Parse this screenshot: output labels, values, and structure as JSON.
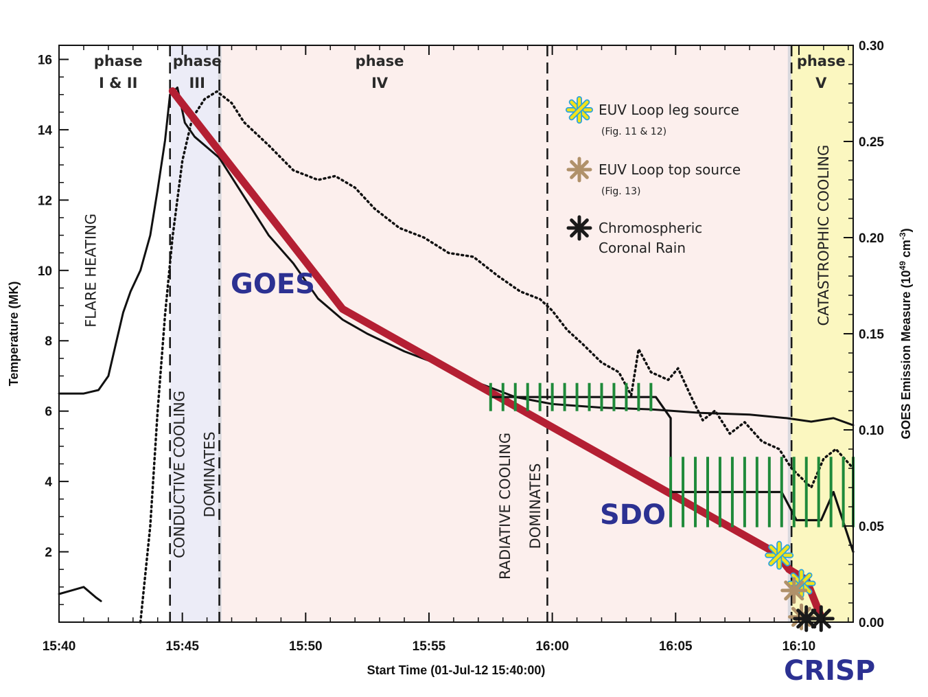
{
  "chart_data": {
    "type": "line",
    "title": "",
    "xlabel": "Start Time (01-Jul-12 15:40:00)",
    "ylabel_left": "Temperature (MK)",
    "ylabel_right_parts": [
      "GOES Emission Measure (10",
      "49",
      " cm",
      "-3",
      ")"
    ],
    "x_unit": "minutes after 15:40",
    "xlim": [
      0,
      32.2
    ],
    "ylim_left": [
      0,
      16.4
    ],
    "ylim_right": [
      0,
      0.3
    ],
    "x_ticks": [
      {
        "value": 0,
        "label": "15:40"
      },
      {
        "value": 5,
        "label": "15:45"
      },
      {
        "value": 10,
        "label": "15:50"
      },
      {
        "value": 15,
        "label": "15:55"
      },
      {
        "value": 20,
        "label": "16:00"
      },
      {
        "value": 25,
        "label": "16:05"
      },
      {
        "value": 30,
        "label": "16:10"
      }
    ],
    "y_left_ticks": [
      {
        "value": 2,
        "label": "2"
      },
      {
        "value": 4,
        "label": "4"
      },
      {
        "value": 6,
        "label": "6"
      },
      {
        "value": 8,
        "label": "8"
      },
      {
        "value": 10,
        "label": "10"
      },
      {
        "value": 12,
        "label": "12"
      },
      {
        "value": 14,
        "label": "14"
      },
      {
        "value": 16,
        "label": "16"
      }
    ],
    "y_right_ticks": [
      {
        "value": 0.0,
        "label": "0.00"
      },
      {
        "value": 0.05,
        "label": "0.05"
      },
      {
        "value": 0.1,
        "label": "0.10"
      },
      {
        "value": 0.15,
        "label": "0.15"
      },
      {
        "value": 0.2,
        "label": "0.20"
      },
      {
        "value": 0.25,
        "label": "0.25"
      },
      {
        "value": 0.3,
        "label": "0.30"
      }
    ],
    "phase_regions": [
      {
        "name": "phase III",
        "x0": 4.5,
        "x1": 6.5,
        "color": "#ececf7"
      },
      {
        "name": "phase IV",
        "x0": 6.5,
        "x1": 29.6,
        "color": "#fcefed"
      },
      {
        "name": "phase V",
        "x0": 29.6,
        "x1": 32.2,
        "color": "#fbf7c0"
      }
    ],
    "phase_lines": [
      4.5,
      6.5,
      19.8,
      29.7
    ],
    "phase_labels": [
      {
        "line1": "phase",
        "line2": "I & II",
        "x": 2.4
      },
      {
        "line1": "phase",
        "line2": "III",
        "x": 5.6
      },
      {
        "line1": "phase",
        "line2": "IV",
        "x": 13.0
      },
      {
        "line1": "phase",
        "line2": "V",
        "x": 30.9
      }
    ],
    "vertical_labels": [
      {
        "lines": [
          "FLARE  HEATING"
        ],
        "x": 1.3,
        "y": 10.0
      },
      {
        "lines": [
          "CONDUCTIVE  COOLING",
          "DOMINATES"
        ],
        "x": 5.5,
        "y": 4.2
      },
      {
        "lines": [
          "RADIATIVE  COOLING",
          "DOMINATES"
        ],
        "x": 18.7,
        "y": 3.3
      },
      {
        "lines": [
          "CATASTROPHIC  COOLING"
        ],
        "x": 31.0,
        "y": 11.0
      }
    ],
    "series": [
      {
        "name": "GOES temperature",
        "style": "solid-black",
        "x": [
          0,
          1.0,
          1.6,
          2.0,
          2.3,
          2.6,
          2.9,
          3.3,
          3.7,
          4.0,
          4.3,
          4.5,
          4.8,
          5.1,
          5.5,
          6.0,
          6.5,
          7.5,
          8.5,
          9.5,
          10.5,
          11.5,
          12.5,
          14,
          15.5,
          17,
          18.5,
          20,
          22,
          24,
          26,
          28,
          29.5,
          30.5,
          31.4,
          32.2
        ],
        "y": [
          6.5,
          6.5,
          6.6,
          7.0,
          7.9,
          8.8,
          9.4,
          10.0,
          11.0,
          12.3,
          13.7,
          15.0,
          15.2,
          14.2,
          13.8,
          13.5,
          13.2,
          12.1,
          11.0,
          10.2,
          9.2,
          8.6,
          8.2,
          7.7,
          7.3,
          6.8,
          6.4,
          6.2,
          6.1,
          6.05,
          5.95,
          5.9,
          5.8,
          5.7,
          5.8,
          5.6
        ]
      },
      {
        "name": "GOES emission measure",
        "style": "dotted-black",
        "axis": "right",
        "x": [
          3.3,
          3.7,
          4.0,
          4.3,
          4.6,
          5.0,
          5.4,
          5.9,
          6.4,
          7.0,
          7.5,
          8.5,
          9.5,
          10.5,
          11.2,
          12.0,
          12.8,
          13.8,
          14.8,
          15.8,
          16.8,
          17.8,
          18.7,
          19.5,
          20.0,
          20.6,
          21.2,
          22.0,
          22.7,
          23.2,
          23.5,
          24.0,
          24.7,
          25.1,
          25.6,
          26.1,
          26.6,
          27.2,
          27.8,
          28.5,
          29.2,
          29.7,
          30.1,
          30.5,
          31.0,
          31.5,
          32.2
        ],
        "y": [
          0.0,
          0.05,
          0.11,
          0.16,
          0.2,
          0.24,
          0.262,
          0.272,
          0.276,
          0.27,
          0.26,
          0.248,
          0.235,
          0.23,
          0.232,
          0.226,
          0.215,
          0.205,
          0.2,
          0.192,
          0.19,
          0.18,
          0.172,
          0.168,
          0.162,
          0.152,
          0.145,
          0.135,
          0.13,
          0.118,
          0.142,
          0.13,
          0.126,
          0.132,
          0.118,
          0.105,
          0.11,
          0.098,
          0.104,
          0.094,
          0.09,
          0.08,
          0.075,
          0.07,
          0.085,
          0.09,
          0.08
        ]
      },
      {
        "name": "GOES red model",
        "style": "thick-red",
        "x": [
          4.6,
          11.5,
          29.1,
          29.6,
          30.3,
          30.9
        ],
        "y": [
          15.1,
          8.9,
          1.95,
          1.5,
          1.2,
          0.15
        ]
      },
      {
        "name": "SDO",
        "style": "solid-black-step",
        "x": [
          17.5,
          24.2,
          24.8,
          24.8,
          29.3,
          29.9,
          30.9,
          31.4,
          32.2
        ],
        "y": [
          6.4,
          6.4,
          5.8,
          3.7,
          3.7,
          2.9,
          2.9,
          3.7,
          2.0
        ]
      },
      {
        "name": "early fragment",
        "style": "solid-black",
        "x": [
          0,
          0.5,
          1.0,
          1.5,
          1.7
        ],
        "y": [
          0.8,
          0.9,
          1.0,
          0.7,
          0.6
        ]
      }
    ],
    "error_bars": [
      {
        "group": "SDO upper",
        "center_y": 6.4,
        "half": 0.4,
        "x": [
          17.5,
          18.0,
          18.5,
          19.0,
          19.5,
          20.0,
          20.5,
          21.0,
          21.5,
          22.0,
          22.5,
          23.0,
          23.5,
          24.0
        ]
      },
      {
        "group": "SDO lower",
        "center_y": 3.7,
        "half": 1.0,
        "x": [
          24.8,
          25.3,
          25.8,
          26.3,
          26.8,
          27.3,
          27.8,
          28.3,
          28.8,
          29.3,
          29.8,
          30.3,
          30.8,
          31.3,
          31.8,
          32.2
        ]
      }
    ],
    "markers": [
      {
        "type": "EUV Loop leg source",
        "x": 29.2,
        "y": 1.9,
        "color": "#f2e21a",
        "outline": "#2aa3de"
      },
      {
        "type": "EUV Loop leg source",
        "x": 30.1,
        "y": 1.1,
        "color": "#f2e21a",
        "outline": "#2aa3de"
      },
      {
        "type": "EUV Loop top source",
        "x": 29.8,
        "y": 0.9,
        "color": "#b0916a"
      },
      {
        "type": "EUV Loop top source",
        "x": 30.1,
        "y": 0.15,
        "color": "#b0916a"
      },
      {
        "type": "Chromospheric Coronal Rain",
        "x": 30.3,
        "y": 0.1,
        "color": "#1a1a1a"
      },
      {
        "type": "Chromospheric Coronal Rain",
        "x": 30.9,
        "y": 0.1,
        "color": "#1a1a1a"
      }
    ],
    "legend": [
      {
        "label": "EUV Loop leg source",
        "sub": "(Fig. 11 & 12)",
        "color": "#f2e21a",
        "outline": "#2aa3de"
      },
      {
        "label": "EUV Loop top source",
        "sub": "(Fig. 13)",
        "color": "#b0916a",
        "outline": ""
      },
      {
        "label": "Chromospheric",
        "sub2": "Coronal Rain",
        "color": "#1a1a1a",
        "outline": ""
      }
    ],
    "legend_placement": "upper-middle",
    "instrument_labels": [
      "GOES",
      "SDO",
      "CRISP"
    ],
    "grid": false
  }
}
